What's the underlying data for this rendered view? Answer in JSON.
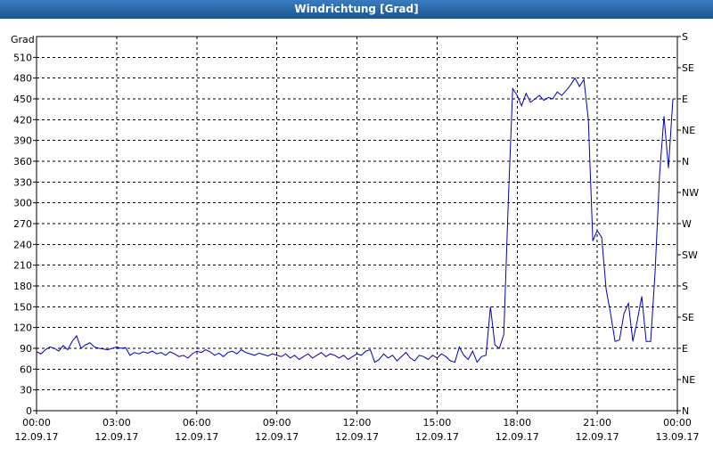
{
  "chart_data": {
    "type": "line",
    "title": "Windrichtung [Grad]",
    "y_label": "Grad",
    "xlim": [
      0,
      1440
    ],
    "xticks": [
      {
        "value": 0,
        "label": "00:00",
        "date": "12.09.17"
      },
      {
        "value": 180,
        "label": "03:00",
        "date": "12.09.17"
      },
      {
        "value": 360,
        "label": "06:00",
        "date": "12.09.17"
      },
      {
        "value": 540,
        "label": "09:00",
        "date": "12.09.17"
      },
      {
        "value": 720,
        "label": "12:00",
        "date": "12.09.17"
      },
      {
        "value": 900,
        "label": "15:00",
        "date": "12.09.17"
      },
      {
        "value": 1080,
        "label": "18:00",
        "date": "12.09.17"
      },
      {
        "value": 1260,
        "label": "21:00",
        "date": "12.09.17"
      },
      {
        "value": 1440,
        "label": "00:00",
        "date": "13.09.17"
      }
    ],
    "ylim": [
      0,
      540
    ],
    "yticks": [
      0,
      30,
      60,
      90,
      120,
      150,
      180,
      210,
      240,
      270,
      300,
      330,
      360,
      390,
      420,
      450,
      480,
      510
    ],
    "y2lim": [
      0,
      540
    ],
    "y2ticks": [
      {
        "value": 0,
        "label": "N"
      },
      {
        "value": 45,
        "label": "NE"
      },
      {
        "value": 90,
        "label": "E"
      },
      {
        "value": 135,
        "label": "SE"
      },
      {
        "value": 180,
        "label": "S"
      },
      {
        "value": 225,
        "label": "SW"
      },
      {
        "value": 270,
        "label": "W"
      },
      {
        "value": 315,
        "label": "NW"
      },
      {
        "value": 360,
        "label": "N"
      },
      {
        "value": 405,
        "label": "NE"
      },
      {
        "value": 450,
        "label": "E"
      },
      {
        "value": 495,
        "label": "SE"
      },
      {
        "value": 540,
        "label": "S"
      }
    ],
    "grid": true,
    "x": [
      0,
      10,
      20,
      30,
      40,
      50,
      60,
      70,
      80,
      90,
      100,
      110,
      120,
      130,
      140,
      150,
      160,
      170,
      180,
      190,
      200,
      210,
      220,
      230,
      240,
      250,
      260,
      270,
      280,
      290,
      300,
      310,
      320,
      330,
      340,
      350,
      360,
      370,
      380,
      390,
      400,
      410,
      420,
      430,
      440,
      450,
      460,
      470,
      480,
      490,
      500,
      510,
      520,
      530,
      540,
      550,
      560,
      570,
      580,
      590,
      600,
      610,
      620,
      630,
      640,
      650,
      660,
      670,
      680,
      690,
      700,
      710,
      720,
      730,
      740,
      750,
      760,
      770,
      780,
      790,
      800,
      810,
      820,
      830,
      840,
      850,
      860,
      870,
      880,
      890,
      900,
      910,
      920,
      930,
      940,
      950,
      960,
      970,
      980,
      990,
      1000,
      1010,
      1020,
      1030,
      1040,
      1050,
      1060,
      1070,
      1080,
      1090,
      1100,
      1110,
      1120,
      1130,
      1140,
      1150,
      1160,
      1170,
      1180,
      1190,
      1200,
      1210,
      1220,
      1230,
      1240,
      1250,
      1260,
      1270,
      1280,
      1290,
      1300,
      1310,
      1320,
      1330,
      1340,
      1350,
      1360,
      1370,
      1380,
      1390,
      1400,
      1410,
      1420,
      1430
    ],
    "series": [
      {
        "name": "Windrichtung",
        "color": "#0000c0",
        "values": [
          85,
          82,
          88,
          92,
          90,
          86,
          94,
          88,
          100,
          108,
          90,
          95,
          98,
          92,
          90,
          89,
          88,
          90,
          92,
          90,
          91,
          80,
          84,
          82,
          85,
          83,
          86,
          82,
          84,
          80,
          85,
          82,
          78,
          80,
          76,
          82,
          86,
          84,
          88,
          85,
          80,
          83,
          78,
          84,
          86,
          82,
          88,
          84,
          82,
          80,
          83,
          81,
          79,
          82,
          80,
          78,
          82,
          76,
          80,
          74,
          78,
          82,
          76,
          80,
          84,
          78,
          82,
          80,
          76,
          80,
          74,
          78,
          82,
          80,
          86,
          88,
          70,
          74,
          82,
          76,
          80,
          72,
          78,
          84,
          76,
          72,
          80,
          78,
          74,
          80,
          76,
          82,
          78,
          72,
          70,
          92,
          80,
          74,
          86,
          70,
          78,
          80,
          150,
          95,
          90,
          110,
          300,
          465,
          455,
          440,
          458,
          445,
          450,
          455,
          448,
          452,
          450,
          460,
          455,
          462,
          470,
          480,
          468,
          478,
          420,
          245,
          260,
          250,
          175,
          140,
          100,
          102,
          140,
          155,
          100,
          130,
          165,
          100,
          100,
          200,
          340,
          425,
          350,
          450
        ]
      }
    ]
  }
}
